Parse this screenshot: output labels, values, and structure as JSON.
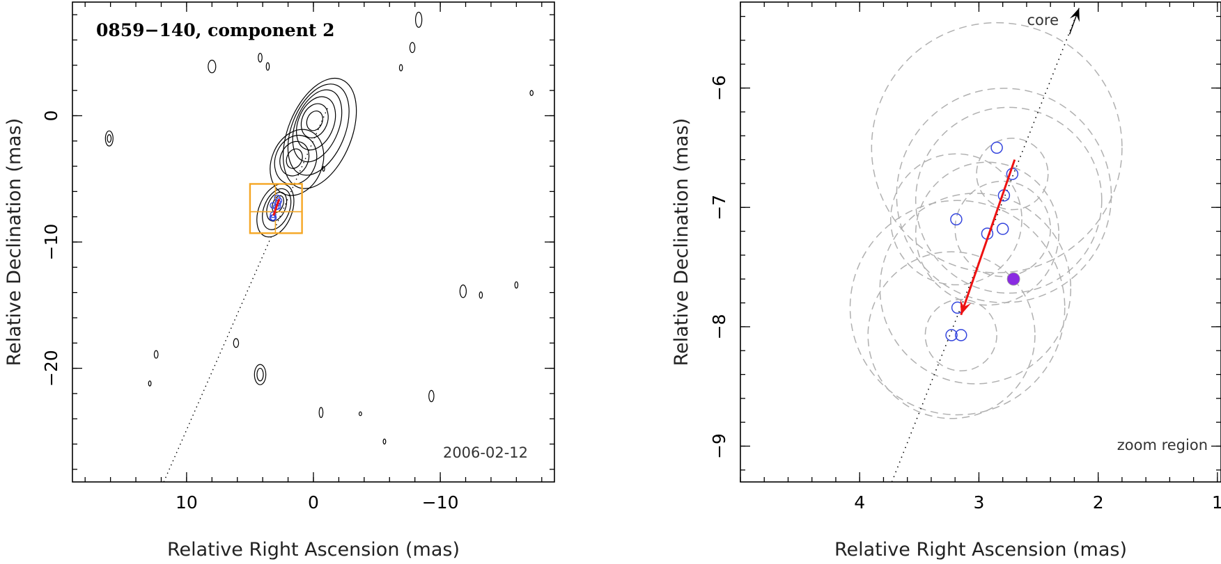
{
  "chart_data": [
    {
      "type": "scatter",
      "title": "0859−140, component 2",
      "annotation": "2006-02-12",
      "xlabel": "Relative Right Ascension (mas)",
      "ylabel": "Relative Declination (mas)",
      "xlim": [
        19.0,
        -19.0
      ],
      "ylim": [
        -29.0,
        9.0
      ],
      "xticks": [
        {
          "value": 10,
          "label": "10"
        },
        {
          "value": 0,
          "label": "0"
        },
        {
          "value": -10,
          "label": "−10"
        }
      ],
      "yticks": [
        {
          "value": 0,
          "label": "0"
        },
        {
          "value": -10,
          "label": "−10"
        },
        {
          "value": -20,
          "label": "−20"
        }
      ],
      "contour_color": "#000000",
      "jet_contours": [
        {
          "cx": -0.1,
          "cy": -0.4,
          "rx": 0.6,
          "ry": 0.8
        },
        {
          "cx": -0.1,
          "cy": -0.4,
          "rx": 1.0,
          "ry": 1.4
        },
        {
          "cx": -0.2,
          "cy": -0.6,
          "rx": 1.4,
          "ry": 2.2
        },
        {
          "cx": -0.3,
          "cy": -0.8,
          "rx": 1.7,
          "ry": 3.0
        },
        {
          "cx": -0.4,
          "cy": -1.1,
          "rx": 2.1,
          "ry": 3.8
        },
        {
          "cx": -0.5,
          "cy": -1.4,
          "rx": 2.5,
          "ry": 4.6
        },
        {
          "cx": 1.5,
          "cy": -3.4,
          "rx": 0.6,
          "ry": 0.8
        },
        {
          "cx": 1.5,
          "cy": -3.4,
          "rx": 1.1,
          "ry": 1.4
        },
        {
          "cx": 1.4,
          "cy": -3.5,
          "rx": 1.6,
          "ry": 2.0
        },
        {
          "cx": 1.3,
          "cy": -3.7,
          "rx": 2.0,
          "ry": 2.7
        },
        {
          "cx": 2.8,
          "cy": -7.0,
          "rx": 0.4,
          "ry": 0.7
        },
        {
          "cx": 2.9,
          "cy": -7.2,
          "rx": 0.7,
          "ry": 1.2
        },
        {
          "cx": 2.9,
          "cy": -7.4,
          "rx": 1.0,
          "ry": 1.7
        },
        {
          "cx": 3.0,
          "cy": -7.5,
          "rx": 1.3,
          "ry": 2.2
        }
      ],
      "isolated_contours": [
        {
          "cx": 16.1,
          "cy": -1.8,
          "rx": 0.3,
          "ry": 0.6
        },
        {
          "cx": 16.1,
          "cy": -1.8,
          "rx": 0.15,
          "ry": 0.3
        },
        {
          "cx": 8.0,
          "cy": 3.9,
          "rx": 0.3,
          "ry": 0.5
        },
        {
          "cx": 4.2,
          "cy": 4.6,
          "rx": 0.15,
          "ry": 0.35
        },
        {
          "cx": 3.6,
          "cy": 3.9,
          "rx": 0.12,
          "ry": 0.3
        },
        {
          "cx": -8.3,
          "cy": 7.6,
          "rx": 0.25,
          "ry": 0.6
        },
        {
          "cx": -7.8,
          "cy": 5.4,
          "rx": 0.2,
          "ry": 0.4
        },
        {
          "cx": -6.9,
          "cy": 3.8,
          "rx": 0.12,
          "ry": 0.25
        },
        {
          "cx": -17.2,
          "cy": 1.8,
          "rx": 0.12,
          "ry": 0.2
        },
        {
          "cx": -0.8,
          "cy": -4.2,
          "rx": 0.08,
          "ry": 0.2
        },
        {
          "cx": -11.8,
          "cy": -13.9,
          "rx": 0.25,
          "ry": 0.5
        },
        {
          "cx": -13.2,
          "cy": -14.2,
          "rx": 0.12,
          "ry": 0.25
        },
        {
          "cx": -16.0,
          "cy": -13.4,
          "rx": 0.12,
          "ry": 0.25
        },
        {
          "cx": 6.1,
          "cy": -18.0,
          "rx": 0.2,
          "ry": 0.35
        },
        {
          "cx": 12.4,
          "cy": -18.9,
          "rx": 0.15,
          "ry": 0.3
        },
        {
          "cx": 12.9,
          "cy": -21.2,
          "rx": 0.1,
          "ry": 0.2
        },
        {
          "cx": 4.2,
          "cy": -20.5,
          "rx": 0.45,
          "ry": 0.8
        },
        {
          "cx": 4.2,
          "cy": -20.5,
          "rx": 0.25,
          "ry": 0.5
        },
        {
          "cx": -9.3,
          "cy": -22.2,
          "rx": 0.2,
          "ry": 0.45
        },
        {
          "cx": -0.6,
          "cy": -23.5,
          "rx": 0.15,
          "ry": 0.4
        },
        {
          "cx": -3.7,
          "cy": -23.6,
          "rx": 0.1,
          "ry": 0.15
        },
        {
          "cx": -5.6,
          "cy": -25.8,
          "rx": 0.1,
          "ry": 0.2
        }
      ],
      "trajectory_line": {
        "x": [
          11.8,
          -1.2
        ],
        "y": [
          -29.0,
          0.8
        ],
        "color": "#000000",
        "style": "dotted"
      },
      "zoom_box": {
        "x": [
          0.9,
          5.0
        ],
        "y": [
          -9.3,
          -5.4
        ],
        "color": "#F5A623"
      },
      "zoom_crosshair": {
        "x": 3.0,
        "y": -7.6
      },
      "component_points": {
        "color": "#3344dd",
        "x": [
          2.85,
          2.72,
          2.79,
          3.19,
          2.93,
          2.8,
          3.18,
          3.23,
          3.15
        ],
        "y": [
          -6.5,
          -6.72,
          -6.9,
          -7.1,
          -7.22,
          -7.18,
          -7.84,
          -8.07,
          -8.07
        ]
      },
      "motion_vector": {
        "x": [
          2.7,
          3.15
        ],
        "y": [
          -6.6,
          -7.9
        ],
        "color": "#ee1111"
      }
    },
    {
      "type": "scatter",
      "annotation_top": "core",
      "annotation": "zoom region",
      "xlabel": "Relative Right Ascension (mas)",
      "ylabel": "Relative Declination (mas)",
      "xlim": [
        5.0,
        0.97
      ],
      "ylim": [
        -9.3,
        -5.28
      ],
      "xticks": [
        {
          "value": 4,
          "label": "4"
        },
        {
          "value": 3,
          "label": "3"
        },
        {
          "value": 2,
          "label": "2"
        },
        {
          "value": 1,
          "label": "1"
        }
      ],
      "yticks": [
        {
          "value": -6,
          "label": "−6"
        },
        {
          "value": -7,
          "label": "−7"
        },
        {
          "value": -8,
          "label": "−8"
        },
        {
          "value": -9,
          "label": "−9"
        }
      ],
      "trajectory_line": {
        "x": [
          3.73,
          2.16
        ],
        "y": [
          -9.3,
          -5.33
        ],
        "color": "#000000",
        "style": "dotted"
      },
      "core_arrow": {
        "x": [
          2.24,
          2.16
        ],
        "y": [
          -5.55,
          -5.33
        ],
        "color": "#000000"
      },
      "component_points": {
        "color": "#3344dd",
        "x": [
          2.85,
          2.72,
          2.79,
          3.19,
          2.93,
          2.8,
          3.18,
          3.23,
          3.15
        ],
        "y": [
          -6.5,
          -6.72,
          -6.9,
          -7.1,
          -7.22,
          -7.18,
          -7.84,
          -8.07,
          -8.07
        ]
      },
      "mean_position": {
        "x": 2.71,
        "y": -7.6,
        "color": "#8a2be2"
      },
      "motion_vector": {
        "x": [
          2.7,
          3.15
        ],
        "y": [
          -6.6,
          -7.9
        ],
        "color": "#ee1111"
      },
      "uncertainty_circles": {
        "color": "#b0b0b0",
        "cx": [
          2.85,
          2.72,
          2.79,
          3.19,
          2.93,
          2.8,
          3.18,
          3.23,
          3.15
        ],
        "cy": [
          -6.5,
          -6.72,
          -6.9,
          -7.1,
          -7.22,
          -7.18,
          -7.84,
          -8.07,
          -8.07
        ],
        "r": [
          1.05,
          0.3,
          0.9,
          0.55,
          0.6,
          0.4,
          0.9,
          0.7,
          0.3
        ]
      },
      "uncertainty_circles_extra": {
        "color": "#b0b0b0",
        "cx": [
          2.75,
          3.03
        ],
        "cy": [
          -6.94,
          -7.68
        ],
        "r": [
          0.78,
          0.8
        ]
      }
    }
  ]
}
